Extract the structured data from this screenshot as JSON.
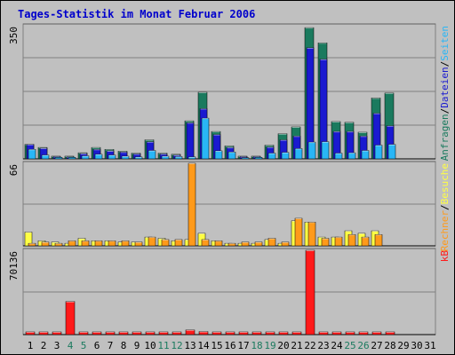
{
  "chart_data": {
    "type": "bar",
    "title": "Tages-Statistik im Monat Februar 2006",
    "categories": [
      "1",
      "2",
      "3",
      "4",
      "5",
      "6",
      "7",
      "8",
      "9",
      "10",
      "11",
      "12",
      "13",
      "14",
      "15",
      "16",
      "17",
      "18",
      "19",
      "20",
      "21",
      "22",
      "23",
      "24",
      "25",
      "26",
      "27",
      "28",
      "29",
      "30",
      "31"
    ],
    "weekend_days": [
      "4",
      "5",
      "11",
      "12",
      "18",
      "19",
      "25",
      "26"
    ],
    "colors": {
      "anfragen": "#1a7a5e",
      "dateien": "#1a1ad0",
      "seiten": "#29b6f6",
      "rechner": "#ffff44",
      "besuche": "#ff9a1a",
      "kb": "#ff1a1a",
      "title": "#0000cc",
      "weekday_label": "#000000",
      "weekend_label": "#1a7a5e"
    },
    "panels": [
      {
        "id": "hits",
        "max_label": "350",
        "ylim": [
          0,
          350
        ],
        "legend": [
          {
            "text": "Anfragen",
            "color_key": "anfragen"
          },
          {
            "text": "/",
            "color_key": "sep"
          },
          {
            "text": "Dateien",
            "color_key": "dateien"
          },
          {
            "text": "/",
            "color_key": "sep"
          },
          {
            "text": "Seiten",
            "color_key": "seiten"
          }
        ],
        "series": [
          {
            "name": "Anfragen",
            "color_key": "anfragen",
            "values": [
              38,
              30,
              7,
              7,
              16,
              30,
              25,
              20,
              15,
              50,
              15,
              12,
              100,
              175,
              72,
              34,
              7,
              7,
              36,
              66,
              84,
              345,
              305,
              98,
              96,
              70,
              160,
              173,
              0,
              0,
              0
            ]
          },
          {
            "name": "Dateien",
            "color_key": "dateien",
            "values": [
              38,
              28,
              6,
              5,
              14,
              25,
              21,
              18,
              13,
              45,
              13,
              10,
              95,
              132,
              64,
              30,
              6,
              6,
              31,
              50,
              60,
              292,
              262,
              72,
              72,
              60,
              120,
              87,
              0,
              0,
              0
            ]
          },
          {
            "name": "Seiten",
            "color_key": "seiten",
            "values": [
              25,
              10,
              4,
              4,
              8,
              12,
              10,
              7,
              5,
              22,
              7,
              6,
              5,
              107,
              21,
              18,
              3,
              4,
              15,
              17,
              27,
              44,
              45,
              15,
              16,
              22,
              36,
              38,
              0,
              0,
              0
            ]
          }
        ]
      },
      {
        "id": "visits",
        "max_label": "66",
        "ylim": [
          0,
          66
        ],
        "legend": [
          {
            "text": "Rechner",
            "color_key": "besuche"
          },
          {
            "text": "/",
            "color_key": "sep"
          },
          {
            "text": "Besuche",
            "color_key": "rechner"
          }
        ],
        "series": [
          {
            "name": "Rechner",
            "color_key": "rechner",
            "values": [
              11,
              4,
              3,
              2,
              6,
              4,
              4,
              3,
              3,
              7,
              6,
              4,
              5,
              10,
              4,
              2,
              2,
              2,
              5,
              2,
              20,
              19,
              7,
              7,
              12,
              10,
              12,
              0,
              0,
              0,
              0
            ]
          },
          {
            "name": "Besuche",
            "color_key": "besuche",
            "values": [
              2,
              3,
              2,
              4,
              4,
              4,
              4,
              4,
              3,
              7,
              5,
              5,
              66,
              5,
              4,
              2,
              3,
              3,
              6,
              3,
              22,
              19,
              6,
              7,
              9,
              7,
              9,
              0,
              0,
              0,
              0
            ]
          }
        ]
      },
      {
        "id": "kb",
        "max_label": "70136",
        "ylim": [
          0,
          70136
        ],
        "legend": [
          {
            "text": "kB",
            "color_key": "kb"
          }
        ],
        "series": [
          {
            "name": "kB",
            "color_key": "kb",
            "values": [
              1300,
              1300,
              1300,
              27500,
              1300,
              1300,
              1300,
              1300,
              1300,
              1300,
              1300,
              1300,
              3800,
              2500,
              1300,
              1300,
              1300,
              1300,
              1300,
              1300,
              1300,
              70136,
              1800,
              1300,
              1300,
              1300,
              1800,
              1300,
              0,
              0,
              0
            ]
          }
        ]
      }
    ]
  }
}
